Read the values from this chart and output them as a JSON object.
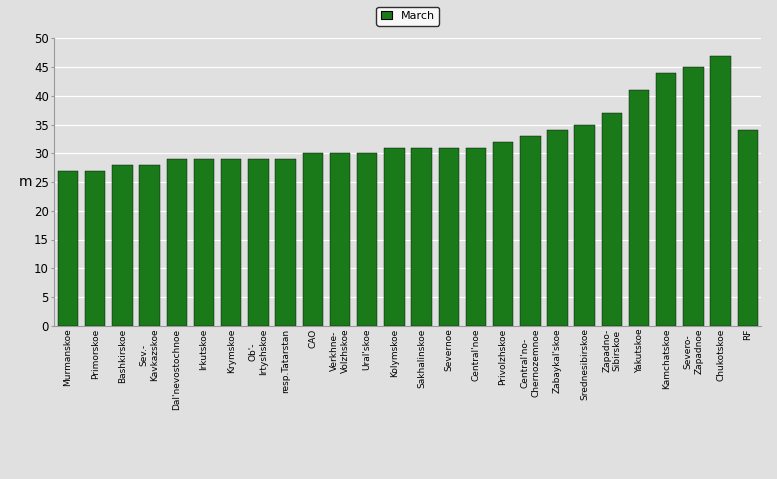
{
  "categories": [
    "Murmanskoe",
    "Primorskoe",
    "Bashkirskoe",
    "Sev.-\nKavkazskoe",
    "Dal'nevostochnoe",
    "Irkutskoe",
    "Krymskoe",
    "Ob'-\nIrtyshskoe",
    "resp.Tatarstan",
    "CAO",
    "Verkhne-\nVolzhskoe",
    "Ural'skoe",
    "Kolymskoe",
    "Sakhalinskoe",
    "Severnoe",
    "Central'noe",
    "Privolzhskoe",
    "Central'no-\nChernozemnoe",
    "Zabaykal'skoe",
    "Srednesibirskoe",
    "Zapadno-\nSibirskoe",
    "Yakutskoe",
    "Kamchatskoe",
    "Severo-\nZapadnoe",
    "Chukotskoe",
    "RF"
  ],
  "values": [
    27,
    27,
    28,
    28,
    29,
    29,
    29,
    29,
    29,
    30,
    30,
    30,
    31,
    31,
    31,
    31,
    32,
    33,
    34,
    35,
    37,
    41,
    44,
    45,
    47,
    34
  ],
  "bar_color": "#1a7a1a",
  "ylabel": "m",
  "ylim": [
    0,
    50
  ],
  "yticks": [
    0,
    5,
    10,
    15,
    20,
    25,
    30,
    35,
    40,
    45,
    50
  ],
  "legend_label": "March",
  "legend_color": "#1a7a1a",
  "bg_color": "#e0e0e0",
  "grid_color": "#ffffff",
  "fig_width": 7.77,
  "fig_height": 4.79,
  "dpi": 100
}
